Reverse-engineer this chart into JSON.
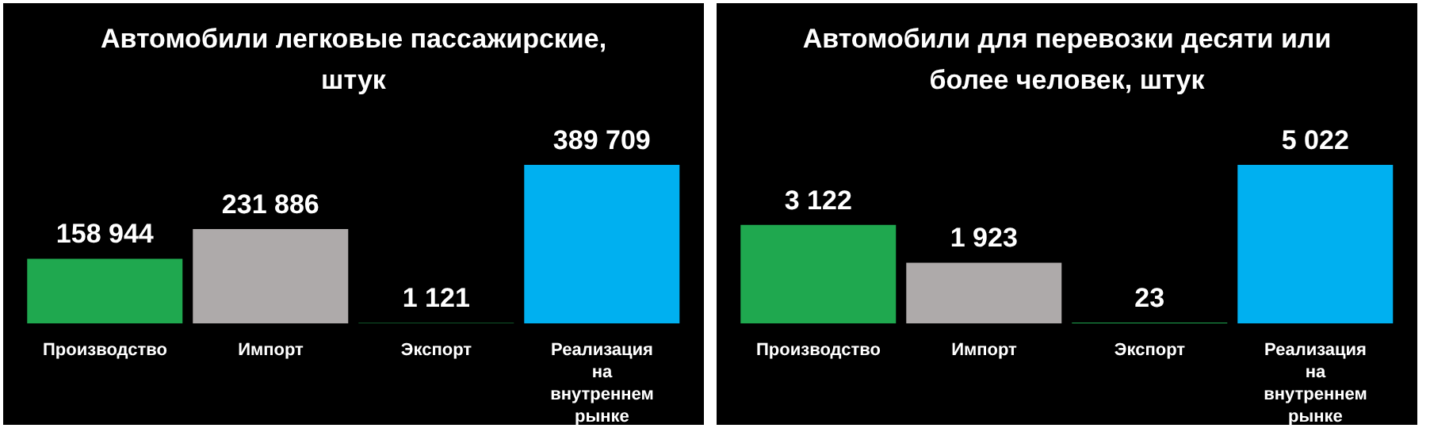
{
  "chart_data": [
    {
      "type": "bar",
      "title": "Автомобили легковые пассажирские, штук",
      "categories": [
        "Производство",
        "Импорт",
        "Экспорт",
        "Реализация на внутреннем рынке"
      ],
      "values": [
        158944,
        231886,
        1121,
        389709
      ],
      "colors": [
        "#1fa84f",
        "#aeaaaa",
        "#1fa84f",
        "#00b0f0"
      ],
      "value_labels": [
        "158 944",
        "231 886",
        "1 121",
        "389 709"
      ]
    },
    {
      "type": "bar",
      "title": "Автомобили для перевозки десяти или более человек, штук",
      "categories": [
        "Производство",
        "Импорт",
        "Экспорт",
        "Реализация на внутреннем рынке"
      ],
      "values": [
        3122,
        1923,
        23,
        5022
      ],
      "colors": [
        "#1fa84f",
        "#aeaaaa",
        "#1fa84f",
        "#00b0f0"
      ],
      "value_labels": [
        "3 122",
        "1 923",
        "23",
        "5 022"
      ]
    }
  ]
}
